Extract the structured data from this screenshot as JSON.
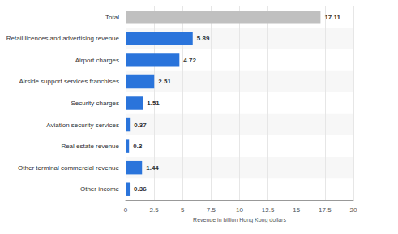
{
  "chart_data": {
    "type": "bar",
    "orientation": "horizontal",
    "categories": [
      "Total",
      "Retail licences and advertising revenue",
      "Airport charges",
      "Airside support services franchises",
      "Security charges",
      "Aviation security services",
      "Real estate revenue",
      "Other terminal commercial revenue",
      "Other income"
    ],
    "values": [
      17.11,
      5.89,
      4.72,
      2.51,
      1.51,
      0.37,
      0.3,
      1.44,
      0.36
    ],
    "colors": [
      "#c0c0c0",
      "#2a74db",
      "#2a74db",
      "#2a74db",
      "#2a74db",
      "#2a74db",
      "#2a74db",
      "#2a74db",
      "#2a74db"
    ],
    "x_label": "Revenue in billion Hong Kong dollars",
    "xlim": [
      0,
      20
    ],
    "xticks": [
      0,
      2.5,
      5,
      7.5,
      10,
      12.5,
      15,
      17.5,
      20
    ],
    "grid": true,
    "data_labels": true
  }
}
